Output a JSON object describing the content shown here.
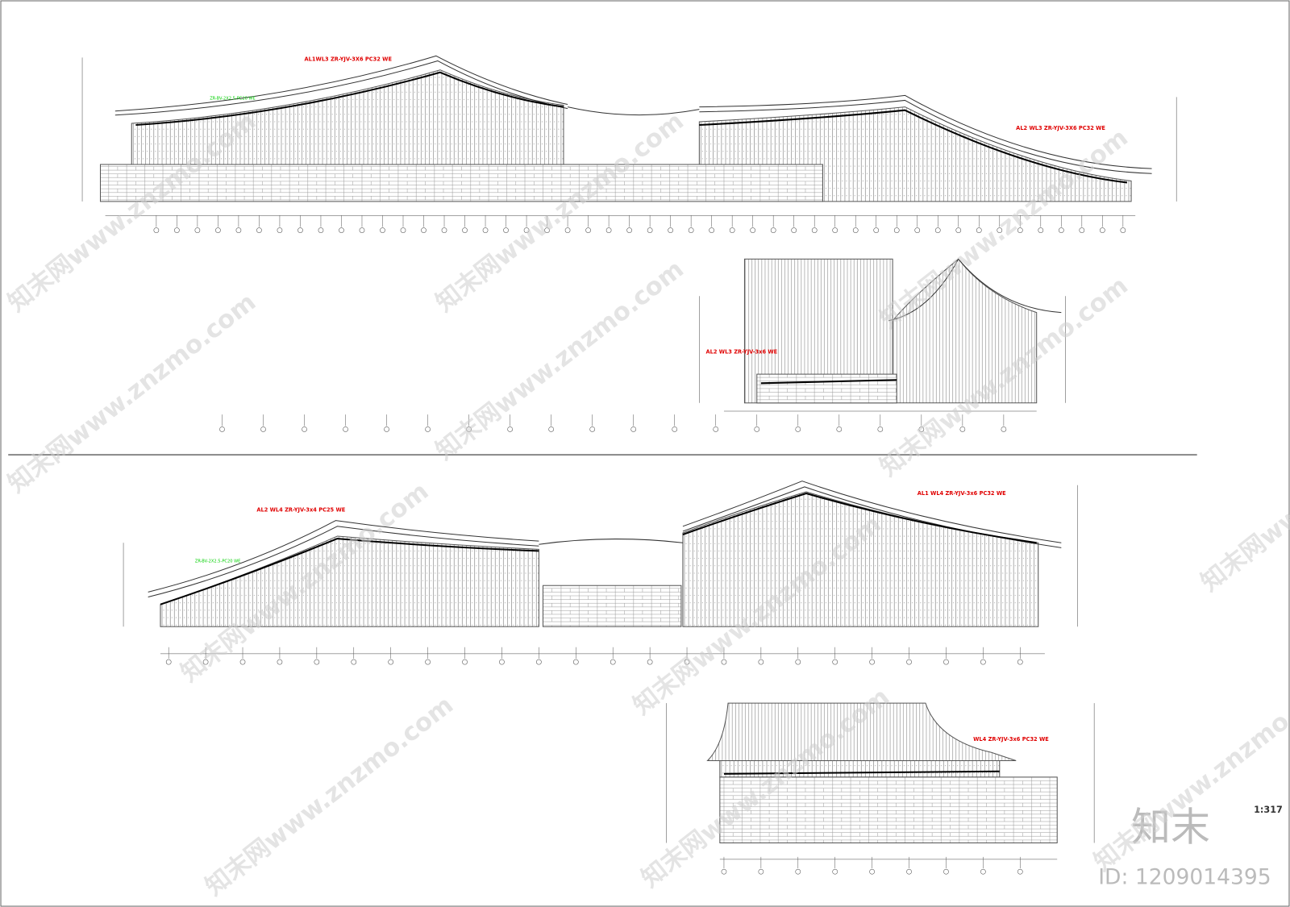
{
  "annotations": {
    "e1_left": "AL1WL3 ZR-YJV-3X6 PC32 WE",
    "e1_right": "AL2 WL3 ZR-YJV-3X6 PC32 WE",
    "e1_green": "ZR-BV-2X2.5-PC20 WE",
    "e2_red": "AL2 WL3 ZR-YJV-3x6 WE",
    "e3_left": "AL2 WL4 ZR-YJV-3x4 PC25 WE",
    "e3_right": "AL1 WL4 ZR-YJV-3x6 PC32 WE",
    "e3_green": "ZR-BV-2X2.5-PC20 WE",
    "e4_red": "WL4 ZR-YJV-3x6 PC32 WE"
  },
  "scale": "1:317",
  "brand": "知末",
  "id": "ID: 1209014395",
  "watermark": "知末网www.znzmo.com"
}
